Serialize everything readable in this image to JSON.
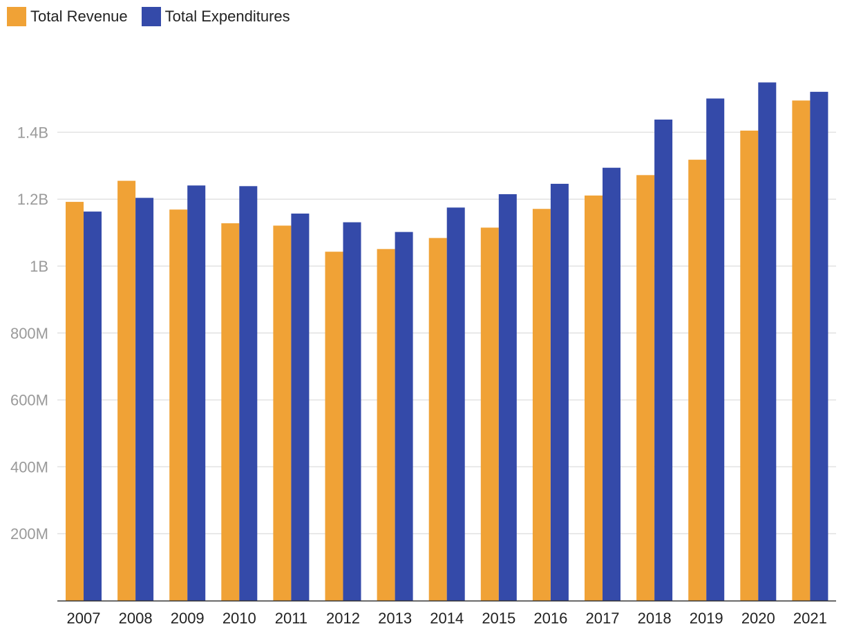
{
  "chart_data": {
    "type": "bar",
    "title": "",
    "xlabel": "",
    "ylabel": "",
    "ylim": [
      0,
      1600000000
    ],
    "grid": true,
    "legend_position": "top-left",
    "categories": [
      "2007",
      "2008",
      "2009",
      "2010",
      "2011",
      "2012",
      "2013",
      "2014",
      "2015",
      "2016",
      "2017",
      "2018",
      "2019",
      "2020",
      "2021"
    ],
    "series": [
      {
        "name": "Total Revenue",
        "color": "#f0a236",
        "values": [
          1192000000,
          1255000000,
          1169000000,
          1128000000,
          1121000000,
          1043000000,
          1051000000,
          1084000000,
          1115000000,
          1171000000,
          1211000000,
          1272000000,
          1318000000,
          1405000000,
          1495000000
        ]
      },
      {
        "name": "Total Expenditures",
        "color": "#344aa9",
        "values": [
          1163000000,
          1204000000,
          1241000000,
          1239000000,
          1157000000,
          1131000000,
          1102000000,
          1175000000,
          1215000000,
          1246000000,
          1294000000,
          1438000000,
          1501000000,
          1549000000,
          1521000000
        ]
      }
    ],
    "y_ticks": [
      {
        "value": 200000000,
        "label": "200M"
      },
      {
        "value": 400000000,
        "label": "400M"
      },
      {
        "value": 600000000,
        "label": "600M"
      },
      {
        "value": 800000000,
        "label": "800M"
      },
      {
        "value": 1000000000,
        "label": "1B"
      },
      {
        "value": 1200000000,
        "label": "1.2B"
      },
      {
        "value": 1400000000,
        "label": "1.4B"
      }
    ]
  }
}
